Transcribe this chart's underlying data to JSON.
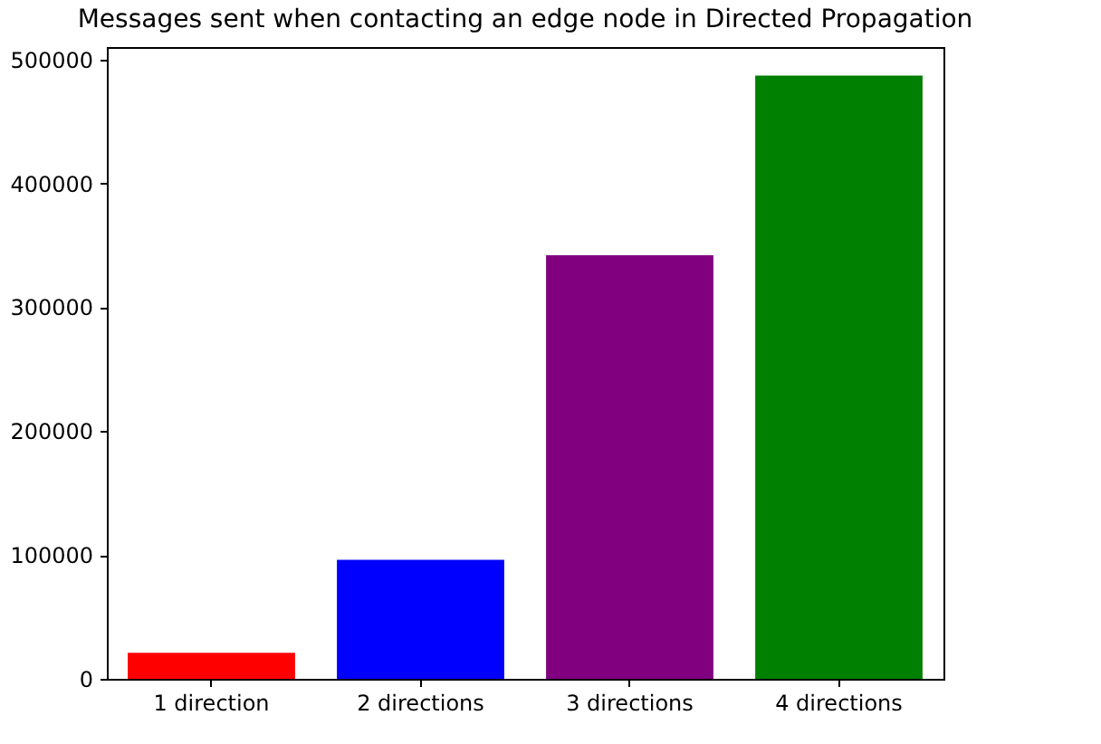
{
  "chart_data": {
    "type": "bar",
    "title": "Messages sent when contacting an edge node in Directed Propagation",
    "categories": [
      "1 direction",
      "2 directions",
      "3 directions",
      "4 directions"
    ],
    "values": [
      21000,
      96000,
      342000,
      487000
    ],
    "colors": [
      "#ff0000",
      "#0000ff",
      "#800080",
      "#008000"
    ],
    "ylim": [
      0,
      510000
    ],
    "yticks": [
      0,
      100000,
      200000,
      300000,
      400000,
      500000
    ],
    "grid": false
  }
}
